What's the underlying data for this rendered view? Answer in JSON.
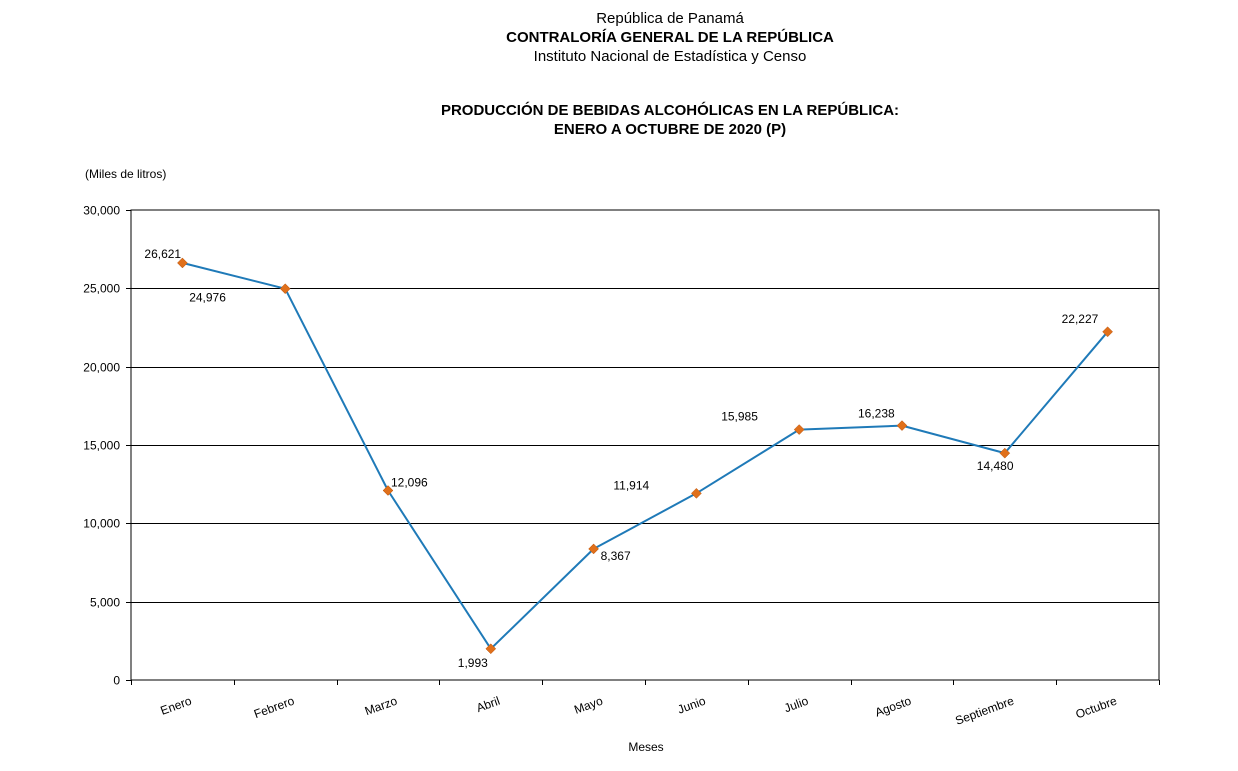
{
  "header": {
    "line1": "República de Panamá",
    "line2": "CONTRALORÍA GENERAL DE LA REPÚBLICA",
    "line3": "Instituto  Nacional de Estadística y Censo"
  },
  "colors": {
    "line": "#1F7AB8",
    "marker": "#E0701B",
    "grid": "#000000"
  },
  "chart_data": {
    "type": "line",
    "title": "PRODUCCIÓN DE BEBIDAS ALCOHÓLICAS EN LA REPÚBLICA:",
    "subtitle": "ENERO A OCTUBRE DE 2020 (P)",
    "units_label": "(Miles de litros)",
    "xlabel": "Meses",
    "ylabel": "",
    "categories": [
      "Enero",
      "Febrero",
      "Marzo",
      "Abril",
      "Mayo",
      "Junio",
      "Julio",
      "Agosto",
      "Septiembre",
      "Octubre"
    ],
    "values": [
      26621,
      24976,
      12096,
      1993,
      8367,
      11914,
      15985,
      16238,
      14480,
      22227
    ],
    "data_labels": [
      "26,621",
      "24,976",
      "12,096",
      "1,993",
      "8,367",
      "11,914",
      "15,985",
      "16,238",
      "14,480",
      "22,227"
    ],
    "ylim": [
      0,
      30000
    ],
    "yticks": [
      0,
      5000,
      10000,
      15000,
      20000,
      25000,
      30000
    ],
    "ytick_labels": [
      "0",
      "5,000",
      "10,000",
      "15,000",
      "20,000",
      "25,000",
      "30,000"
    ],
    "grid": true,
    "legend": "none"
  }
}
